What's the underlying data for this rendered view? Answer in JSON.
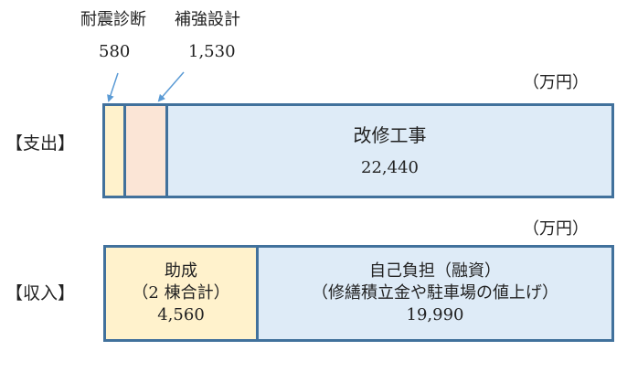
{
  "unit_label": "（万円）",
  "colors": {
    "border": "#41719c",
    "yellow": "#fff2cc",
    "pink": "#fbe5d6",
    "blue": "#deebf7",
    "arrow": "#5b9bd5"
  },
  "expenditure": {
    "label": "【支出】",
    "items": [
      {
        "name": "耐震診断",
        "value": "580"
      },
      {
        "name": "補強設計",
        "value": "1,530"
      },
      {
        "name": "改修工事",
        "value": "22,440"
      }
    ]
  },
  "income": {
    "label": "【収入】",
    "items": [
      {
        "name": "助成",
        "note": "（2 棟合計）",
        "value": "4,560"
      },
      {
        "name": "自己負担（融資）",
        "note": "（修繕積立金や駐車場の値上げ）",
        "value": "19,990"
      }
    ]
  }
}
